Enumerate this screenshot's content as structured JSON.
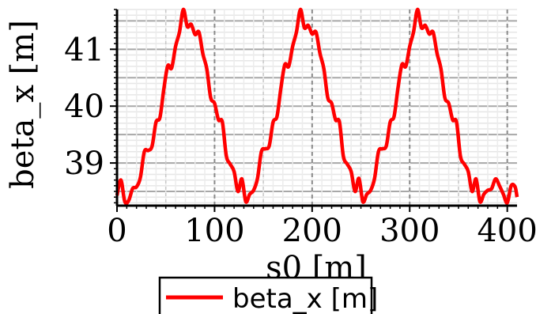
{
  "chart_data": {
    "type": "line",
    "xlabel": "s0 [m]",
    "ylabel": "beta_x [m]",
    "xlim": [
      0,
      410
    ],
    "ylim": [
      38.25,
      41.7
    ],
    "x_ticks": [
      0,
      100,
      200,
      300,
      400
    ],
    "x_tick_labels": [
      "0",
      "100",
      "200",
      "300",
      "400"
    ],
    "y_ticks": [
      39,
      40,
      41
    ],
    "y_tick_labels": [
      "39",
      "40",
      "41"
    ],
    "grid": true,
    "legend_position": "bottom",
    "series": [
      {
        "name": "beta_x [m]",
        "color": "#ff0000",
        "x": [
          0,
          4,
          8,
          12,
          16,
          20,
          24,
          28,
          32,
          36,
          40,
          44,
          48,
          52,
          56,
          60,
          64,
          68,
          72,
          76,
          80,
          84,
          88,
          92,
          96,
          100,
          104,
          108,
          112,
          116,
          120,
          124,
          128,
          132,
          136,
          140,
          144,
          148,
          152,
          156,
          160,
          164,
          168,
          172,
          176,
          180,
          184,
          188,
          192,
          196,
          200,
          204,
          208,
          212,
          216,
          220,
          224,
          228,
          232,
          236,
          240,
          244,
          248,
          252,
          256,
          260,
          264,
          268,
          272,
          276,
          280,
          284,
          288,
          292,
          296,
          300,
          304,
          308,
          312,
          316,
          320,
          324,
          328,
          332,
          336,
          340,
          344,
          348,
          352,
          356,
          360,
          364,
          368,
          372,
          376,
          380,
          384,
          388,
          392,
          396,
          400,
          404,
          408,
          410
        ],
        "y": [
          38.43,
          38.7,
          38.32,
          38.34,
          38.55,
          38.58,
          38.75,
          39.2,
          39.22,
          39.3,
          39.72,
          39.8,
          40.3,
          40.71,
          40.67,
          41.05,
          41.3,
          41.7,
          41.4,
          41.44,
          41.26,
          41.3,
          40.92,
          40.66,
          40.15,
          40.05,
          39.76,
          39.72,
          39.13,
          38.98,
          38.85,
          38.5,
          38.72,
          38.32,
          38.45,
          38.52,
          38.73,
          39.2,
          39.25,
          39.3,
          39.72,
          39.82,
          40.32,
          40.73,
          40.7,
          41.05,
          41.31,
          41.7,
          41.38,
          41.42,
          41.27,
          41.3,
          40.93,
          40.66,
          40.15,
          40.05,
          39.76,
          39.72,
          39.12,
          38.98,
          38.85,
          38.5,
          38.73,
          38.32,
          38.45,
          38.52,
          38.73,
          39.2,
          39.25,
          39.3,
          39.72,
          39.82,
          40.32,
          40.73,
          40.7,
          41.05,
          41.31,
          41.7,
          41.38,
          41.42,
          41.27,
          41.3,
          40.93,
          40.66,
          40.15,
          40.05,
          39.76,
          39.72,
          39.12,
          38.98,
          38.85,
          38.5,
          38.72,
          38.32,
          38.45,
          38.52,
          38.55,
          38.72,
          38.6,
          38.45,
          38.3,
          38.6,
          38.58,
          38.4
        ]
      }
    ]
  }
}
